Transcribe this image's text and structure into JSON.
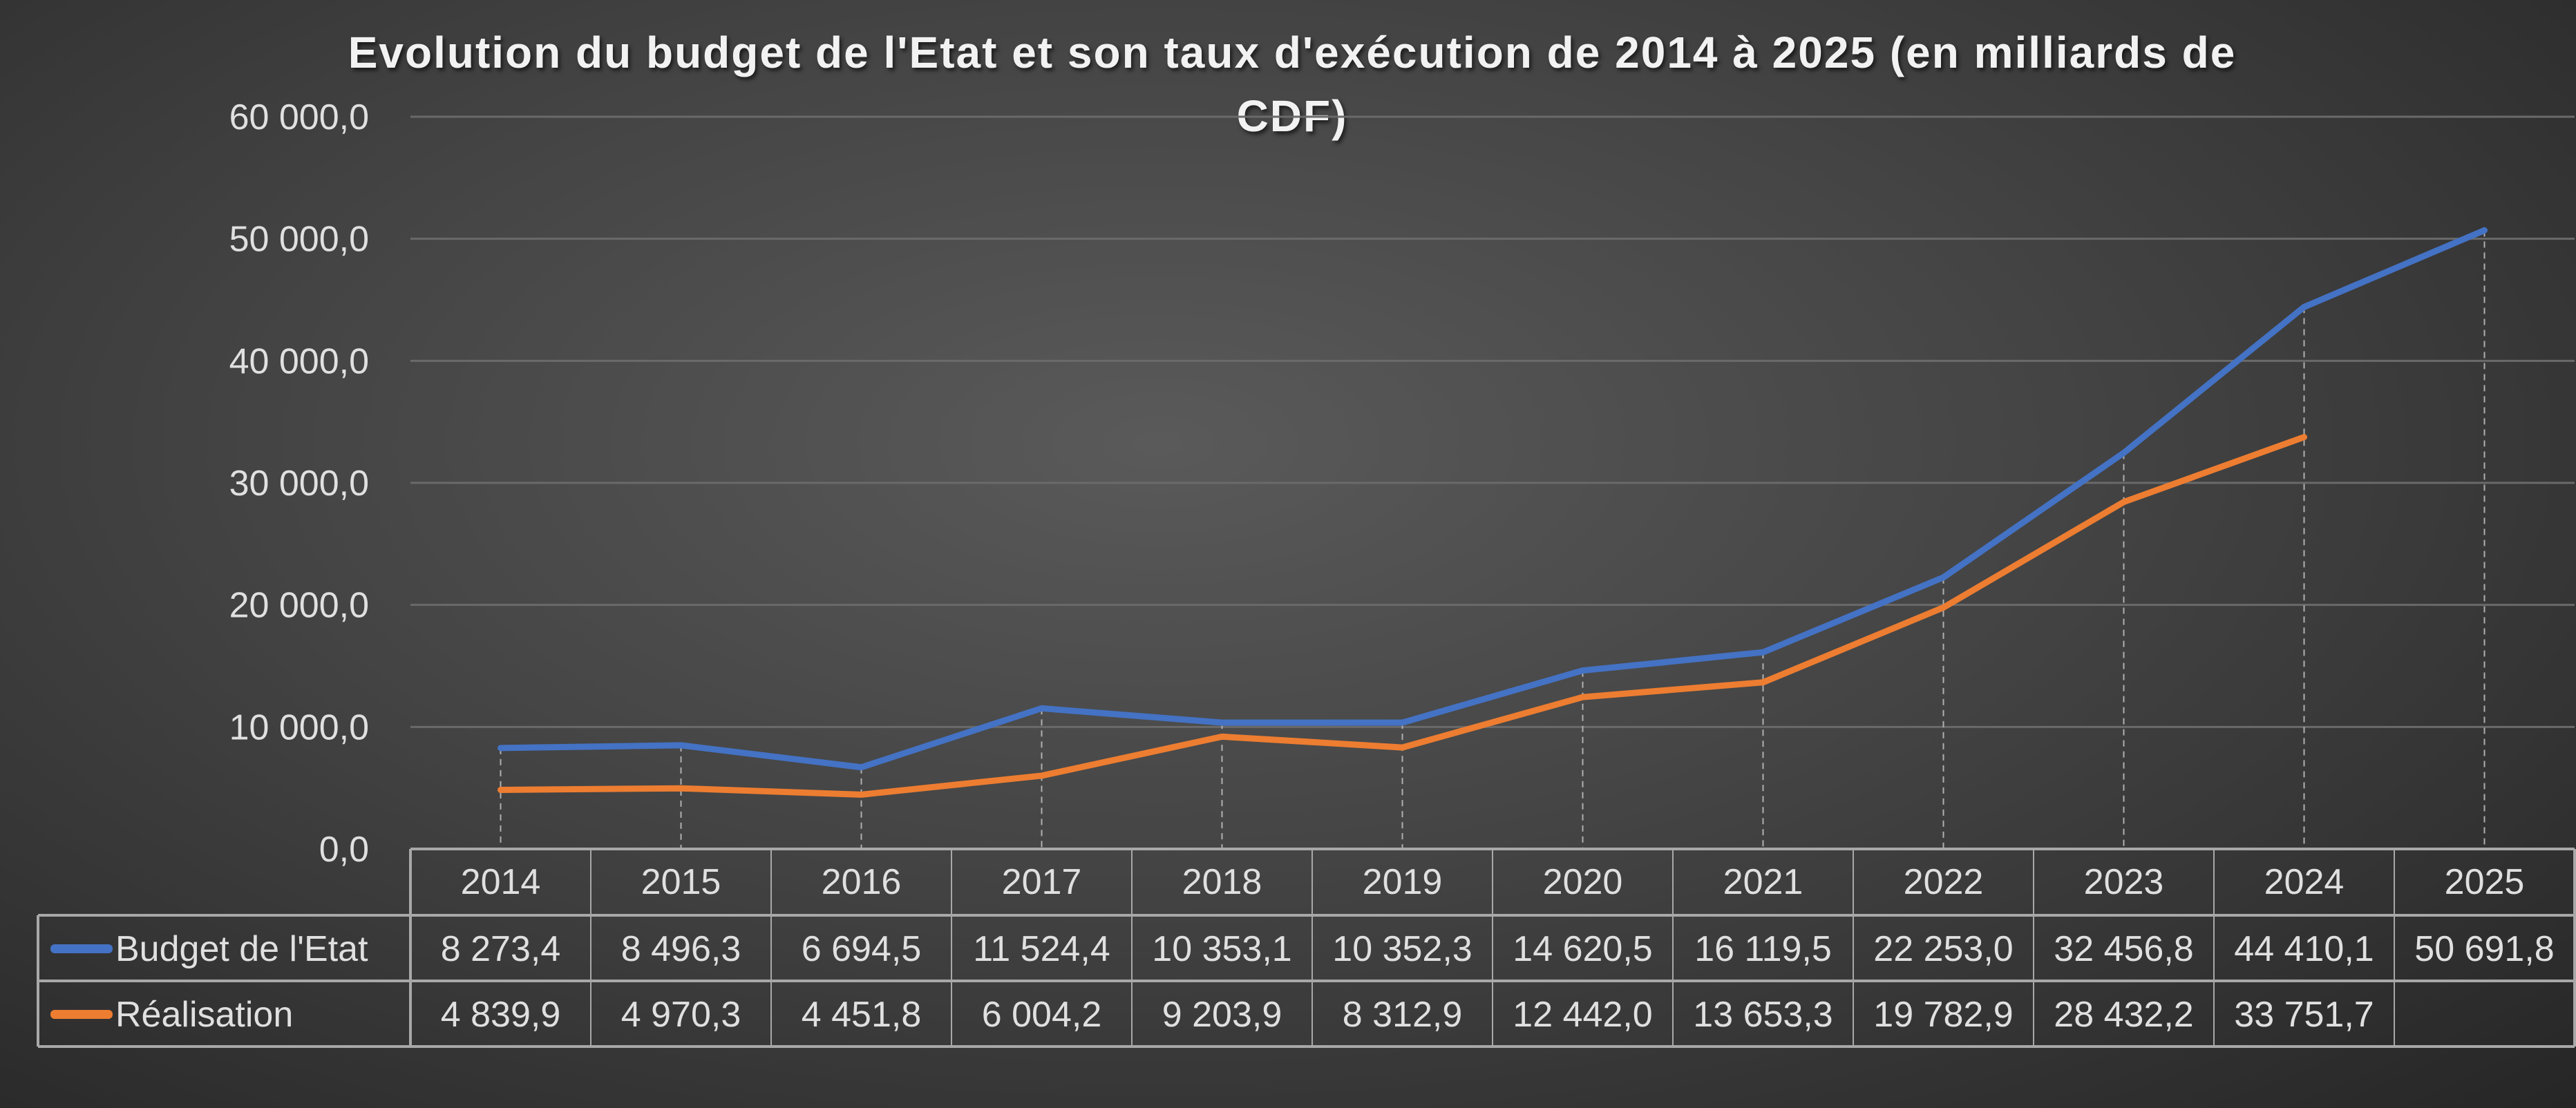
{
  "chart_data": {
    "type": "line",
    "title": "Evolution du budget de l'Etat et son taux d'exécution de 2014 à 2025 (en milliards de CDF)",
    "categories": [
      "2014",
      "2015",
      "2016",
      "2017",
      "2018",
      "2019",
      "2020",
      "2021",
      "2022",
      "2023",
      "2024",
      "2025"
    ],
    "series": [
      {
        "name": "Budget de l'Etat",
        "color": "#4472c4",
        "values": [
          8273.4,
          8496.3,
          6694.5,
          11524.4,
          10353.1,
          10352.3,
          14620.5,
          16119.5,
          22253.0,
          32456.8,
          44410.1,
          50691.8
        ],
        "labels": [
          "8 273,4",
          "8 496,3",
          "6 694,5",
          "11 524,4",
          "10 353,1",
          "10 352,3",
          "14 620,5",
          "16 119,5",
          "22 253,0",
          "32 456,8",
          "44 410,1",
          "50 691,8"
        ]
      },
      {
        "name": "Réalisation",
        "color": "#ed7d31",
        "values": [
          4839.9,
          4970.3,
          4451.8,
          6004.2,
          9203.9,
          8312.9,
          12442.0,
          13653.3,
          19782.9,
          28432.2,
          33751.7,
          null
        ],
        "labels": [
          "4 839,9",
          "4 970,3",
          "4 451,8",
          "6 004,2",
          "9 203,9",
          "8 312,9",
          "12 442,0",
          "13 653,3",
          "19 782,9",
          "28 432,2",
          "33 751,7",
          ""
        ]
      }
    ],
    "ylim": [
      0,
      60000
    ],
    "yticks": [
      0,
      10000,
      20000,
      30000,
      40000,
      50000,
      60000
    ],
    "ytick_labels": [
      "0,0",
      "10 000,0",
      "20 000,0",
      "30 000,0",
      "40 000,0",
      "50 000,0",
      "60 000,0"
    ],
    "grid": true,
    "drop_lines": true,
    "legend": "data-table",
    "background": "dark-gray-gradient"
  }
}
